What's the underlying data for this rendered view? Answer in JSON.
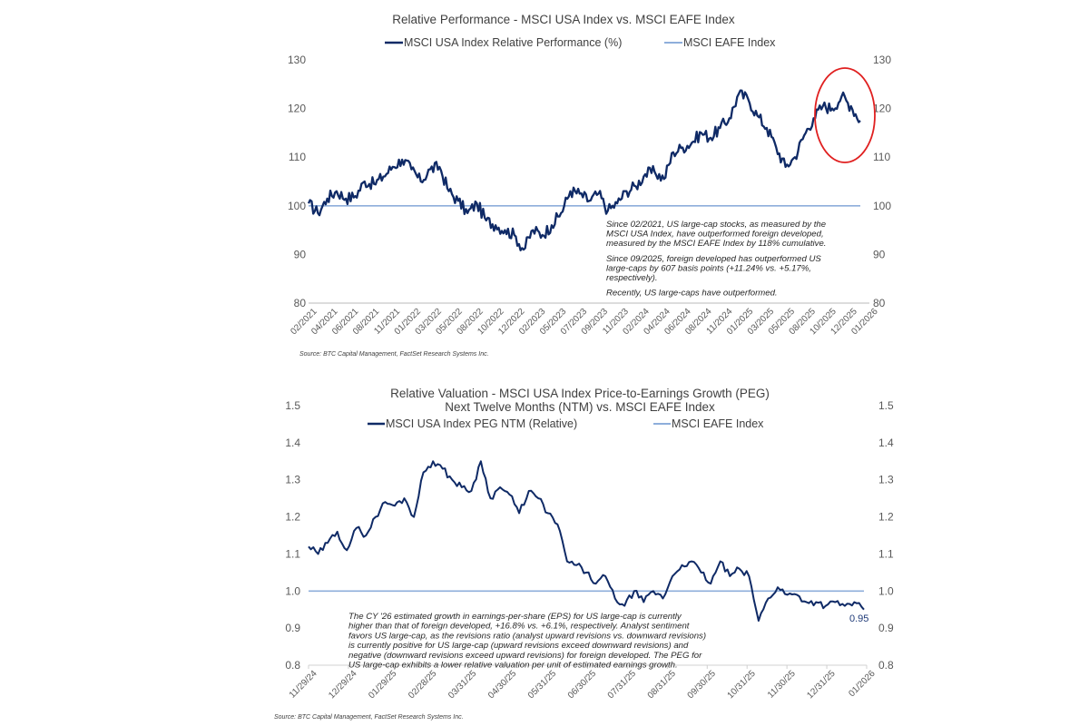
{
  "chart_data": [
    {
      "type": "line",
      "title": "Relative Performance - MSCI USA Index vs. MSCI EAFE Index",
      "xlabel": "",
      "ylabel": "",
      "ylim": [
        80,
        130
      ],
      "y_ticks": [
        "130",
        "120",
        "110",
        "100",
        "90",
        "80"
      ],
      "y_ticks_right": [
        "130",
        "120",
        "110",
        "100",
        "90",
        "80"
      ],
      "x_tick_labels": [
        "02/2021",
        "04/2021",
        "06/2021",
        "08/2021",
        "11/2021",
        "01/2022",
        "03/2022",
        "05/2022",
        "08/2022",
        "10/2022",
        "12/2022",
        "02/2023",
        "05/2023",
        "07/2023",
        "09/2023",
        "11/2023",
        "02/2024",
        "04/2024",
        "06/2024",
        "08/2024",
        "11/2024",
        "01/2025",
        "03/2025",
        "05/2025",
        "08/2025",
        "10/2025",
        "12/2025",
        "01/2026"
      ],
      "grid": false,
      "legend_position": "top-center",
      "series": [
        {
          "name": "MSCI USA Index Relative Performance (%)",
          "color": "#0f2a66",
          "x": [
            "02/2021",
            "03/2021",
            "04/2021",
            "05/2021",
            "06/2021",
            "07/2021",
            "08/2021",
            "09/2021",
            "10/2021",
            "11/2021",
            "12/2021",
            "01/2022",
            "02/2022",
            "03/2022",
            "04/2022",
            "05/2022",
            "06/2022",
            "07/2022",
            "08/2022",
            "09/2022",
            "10/2022",
            "11/2022",
            "12/2022",
            "01/2023",
            "02/2023",
            "03/2023",
            "04/2023",
            "05/2023",
            "06/2023",
            "07/2023",
            "08/2023",
            "09/2023",
            "10/2023",
            "11/2023",
            "12/2023",
            "01/2024",
            "02/2024",
            "03/2024",
            "04/2024",
            "05/2024",
            "06/2024",
            "07/2024",
            "08/2024",
            "09/2024",
            "10/2024",
            "11/2024",
            "12/2024",
            "01/2025",
            "02/2025",
            "03/2025",
            "04/2025",
            "05/2025",
            "06/2025",
            "07/2025",
            "08/2025",
            "09/2025",
            "10/2025",
            "11/2025",
            "12/2025",
            "01/2026"
          ],
          "values": [
            100.5,
            98.5,
            101.5,
            103,
            101.5,
            102,
            105,
            104.5,
            106,
            108,
            109.5,
            107.5,
            105,
            107.5,
            108,
            103,
            101,
            98.5,
            100.5,
            97,
            96,
            95,
            94,
            91,
            95,
            94,
            96,
            98.5,
            103,
            102.5,
            101,
            102.5,
            99,
            100.5,
            103,
            104,
            106.5,
            107,
            105.5,
            111,
            112,
            113,
            115,
            114,
            116,
            118,
            123,
            122,
            118.5,
            116,
            112,
            108,
            110,
            114.5,
            118,
            120.5,
            120,
            122.5,
            120.5,
            117.5
          ]
        },
        {
          "name": "MSCI EAFE Index",
          "color": "#8eaedb",
          "x": [
            "02/2021",
            "01/2026"
          ],
          "values": [
            100,
            100
          ]
        }
      ],
      "annotations": [
        "Since 02/2021, US large-cap stocks, as measured by the MSCI USA Index, have outperformed foreign developed, measured by the MSCI EAFE Index by 118% cumulative.",
        "Since 09/2025, foreign developed has outperformed US large-caps by 607 basis points (+11.24% vs. +5.17%, respectively).",
        "Recently, US large-caps have outperformed."
      ],
      "highlight": "red ellipse around 10/2025 - 01/2026",
      "source": "Source: BTC Capital Management, FactSet Research Systems Inc."
    },
    {
      "type": "line",
      "title": "Relative Valuation - MSCI USA Index Price-to-Earnings Growth (PEG)",
      "subtitle": "Next Twelve Months (NTM) vs. MSCI EAFE Index",
      "xlabel": "",
      "ylabel": "",
      "ylim": [
        0.8,
        1.5
      ],
      "y_ticks": [
        "1.5",
        "1.4",
        "1.3",
        "1.2",
        "1.1",
        "1.0",
        "0.9",
        "0.8"
      ],
      "y_ticks_right": [
        "1.5",
        "1.4",
        "1.3",
        "1.2",
        "1.1",
        "1.0",
        "0.9",
        "0.8"
      ],
      "x_tick_labels": [
        "11/29/24",
        "12/29/24",
        "01/29/25",
        "02/28/25",
        "03/31/25",
        "04/30/25",
        "05/31/25",
        "06/30/25",
        "07/31/25",
        "08/31/25",
        "09/30/25",
        "10/31/25",
        "11/30/25",
        "12/31/25",
        "01/2026"
      ],
      "grid": false,
      "legend_position": "top-center",
      "series": [
        {
          "name": "MSCI USA Index PEG NTM (Relative)",
          "color": "#0f2a66",
          "x": [
            "11/29/24",
            "12/07/24",
            "12/15/24",
            "12/22/24",
            "12/29/24",
            "01/06/25",
            "01/13/25",
            "01/20/25",
            "01/29/25",
            "02/05/25",
            "02/12/25",
            "02/20/25",
            "02/28/25",
            "03/03/25",
            "03/10/25",
            "03/17/25",
            "03/24/25",
            "03/31/25",
            "04/04/25",
            "04/10/25",
            "04/17/25",
            "04/24/25",
            "04/30/25",
            "05/07/25",
            "05/14/25",
            "05/21/25",
            "05/27/25",
            "05/31/25",
            "06/07/25",
            "06/15/25",
            "06/22/25",
            "06/30/25",
            "07/07/25",
            "07/14/25",
            "07/21/25",
            "07/31/25",
            "08/07/25",
            "08/14/25",
            "08/21/25",
            "08/31/25",
            "09/07/25",
            "09/15/25",
            "09/22/25",
            "09/30/25",
            "10/07/25",
            "10/14/25",
            "10/21/25",
            "10/31/25",
            "11/07/25",
            "11/14/25",
            "11/21/25",
            "11/30/25",
            "12/07/25",
            "12/15/25",
            "12/22/25",
            "12/31/25",
            "01/07/26",
            "01/14/26",
            "01/2026"
          ],
          "values": [
            1.12,
            1.1,
            1.13,
            1.16,
            1.11,
            1.17,
            1.15,
            1.2,
            1.24,
            1.23,
            1.25,
            1.2,
            1.32,
            1.35,
            1.33,
            1.3,
            1.28,
            1.27,
            1.35,
            1.25,
            1.28,
            1.26,
            1.21,
            1.27,
            1.25,
            1.21,
            1.18,
            1.08,
            1.07,
            1.05,
            1.02,
            1.04,
            0.98,
            0.96,
            1.0,
            0.97,
            1.0,
            0.98,
            1.04,
            1.07,
            1.08,
            1.05,
            1.02,
            1.08,
            1.04,
            1.06,
            1.04,
            0.92,
            0.98,
            1.01,
            0.99,
            0.99,
            0.97,
            0.97,
            0.96,
            0.97,
            0.96,
            0.97,
            0.95
          ]
        },
        {
          "name": "MSCI EAFE  Index",
          "color": "#8eaedb",
          "x": [
            "11/29/24",
            "01/2026"
          ],
          "values": [
            1.0,
            1.0
          ]
        }
      ],
      "end_label": "0.95",
      "annotations": [
        "The CY '26 estimated growth in earnings-per-share (EPS) for US large-cap is currently",
        "higher than that of foreign developed, +16.8% vs. +6.1%, respectively. Analyst sentiment",
        "favors US large-cap, as the revisions ratio (analyst upward revisions vs. downward revisions)",
        "is currently positive for US large-cap (upward revisions exceed downward revisions) and",
        "negative (downward revisions exceed upward revisions) for foreign developed. The PEG for",
        "US large-cap exhibits a lower relative valuation per unit of estimated earnings growth."
      ],
      "source": "Source: BTC Capital Management, FactSet Research Systems Inc."
    }
  ],
  "chart1_note_lines": [
    "Since 02/2021, US large-cap stocks, as measured by the",
    "MSCI USA Index, have outperformed foreign developed,",
    "measured by the MSCI EAFE Index by 118% cumulative.",
    "",
    "Since 09/2025, foreign developed has outperformed US",
    "large-caps by 607 basis points (+11.24% vs. +5.17%,",
    "respectively).",
    "",
    "Recently, US large-caps have outperformed."
  ]
}
